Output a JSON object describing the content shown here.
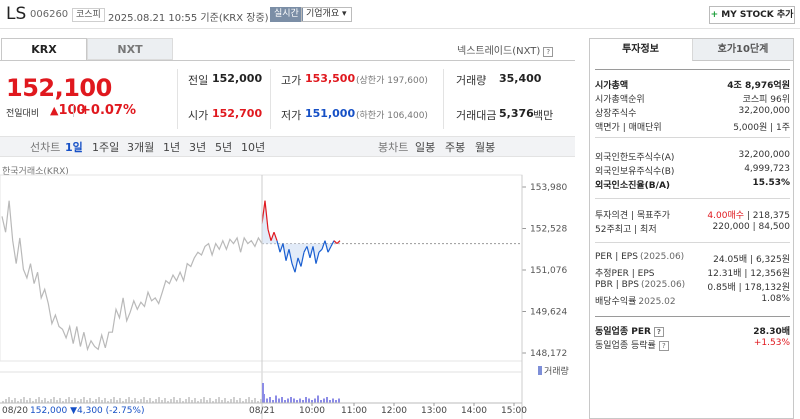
{
  "header": {
    "name": "LS",
    "code": "006260",
    "market": "코스피",
    "datetime": "2025.08.21 10:55 기준(KRX 장중)",
    "live": "실시간",
    "overview": "기업개요",
    "mystock": "MY STOCK 추가"
  },
  "market_tabs": [
    "KRX",
    "NXT"
  ],
  "nxt_link": "넥스트레이드(NXT)",
  "price": {
    "current": "152,100",
    "change_label": "전일대비",
    "change_value": "100",
    "change_pct": "+0.07%"
  },
  "quote": {
    "prev_label": "전일",
    "prev": "152,000",
    "open_label": "시가",
    "open": "152,700",
    "high_label": "고가",
    "high": "153,500",
    "upper_limit": "(상한가 197,600)",
    "low_label": "저가",
    "low": "151,000",
    "lower_limit": "(하한가 106,400)",
    "volume_label": "거래량",
    "volume": "35,400",
    "amount_label": "거래대금",
    "amount": "5,376",
    "amount_unit": "백만"
  },
  "period_tabs": {
    "chart_label": "선차트",
    "line": [
      "1일",
      "1주일",
      "3개월",
      "1년",
      "3년",
      "5년",
      "10년"
    ],
    "candle_label": "봉차트",
    "candle": [
      "일봉",
      "주봉",
      "월봉"
    ]
  },
  "chart_data": {
    "type": "line",
    "source": "한국거래소(KRX)",
    "y_ticks": [
      "153,980",
      "152,528",
      "151,076",
      "149,624",
      "148,172"
    ],
    "ylim": [
      148172,
      153980
    ],
    "reference_price": 152000,
    "x_labels": [
      "08/21",
      "10:00",
      "11:00",
      "12:00",
      "13:00",
      "14:00",
      "15:00"
    ],
    "prev_day_label": "08/20",
    "prev_day_close": "152,000",
    "prev_day_change": "▼4,300",
    "prev_day_pct": "(-2.75%)",
    "volume_label": "거래량",
    "prev_day_series": [
      152950,
      152400,
      153500,
      152100,
      151300,
      152200,
      151100,
      150800,
      151300,
      150600,
      151000,
      150100,
      150400,
      149900,
      149200,
      149500,
      149100,
      149000,
      148700,
      149100,
      148500,
      149100,
      148400,
      148900,
      148300,
      148600,
      148400,
      148300,
      148800,
      148350,
      148900,
      148900,
      149700,
      149400,
      150100,
      149300,
      149600,
      150000,
      149700,
      149950,
      149800,
      150300,
      150000,
      150100,
      149900,
      150300,
      150700,
      150600,
      150900,
      150700,
      151000,
      150700,
      151300,
      151200,
      151500,
      151700,
      151600,
      151900,
      152000,
      151600,
      152000,
      151800,
      152100,
      151800,
      152150,
      152000,
      152200,
      151700,
      152200,
      152000,
      152100,
      151900,
      152200,
      152000
    ],
    "today_series": [
      152700,
      153500,
      152500,
      152100,
      152400,
      152100,
      151700,
      152000,
      151400,
      151800,
      151300,
      151000,
      151500,
      151200,
      151700,
      151900,
      151500,
      151900,
      151300,
      151700,
      151800,
      152100,
      151700,
      151900,
      152100,
      152000,
      152100
    ]
  },
  "right_panel": {
    "tabs": [
      "투자정보",
      "호가10단계"
    ],
    "rows": [
      {
        "k": "시가총액",
        "v": "4조 8,976억원"
      },
      {
        "k": "시가총액순위",
        "v": "코스피 96위"
      },
      {
        "k": "상장주식수",
        "v": "32,200,000"
      },
      {
        "k": "액면가 | 매매단위",
        "v": "5,000원 | 1주"
      },
      {
        "k": "외국인한도주식수(A)",
        "v": "32,200,000"
      },
      {
        "k": "외국인보유주식수(B)",
        "v": "4,999,723"
      },
      {
        "k": "외국인소진율(B/A)",
        "v": "15.53%"
      },
      {
        "k": "투자의견 | 목표주가",
        "v_red": "4.00매수",
        "v": "218,375"
      },
      {
        "k": "52주최고 | 최저",
        "v": "220,000 | 84,500"
      },
      {
        "k": "PER | EPS",
        "k_note": "(2025.06)",
        "v": "24.05배 | 6,325원"
      },
      {
        "k": "추정PER | EPS",
        "v": "12.31배 | 12,356원"
      },
      {
        "k": "PBR | BPS",
        "k_note": "(2025.06)",
        "v": "0.85배 | 178,132원"
      },
      {
        "k": "배당수익률",
        "k_note": "2025.02",
        "v": "1.08%"
      },
      {
        "k": "동일업종 PER",
        "v": "28.30배"
      },
      {
        "k": "동일업종 등락률",
        "v": "+1.53%"
      }
    ]
  }
}
